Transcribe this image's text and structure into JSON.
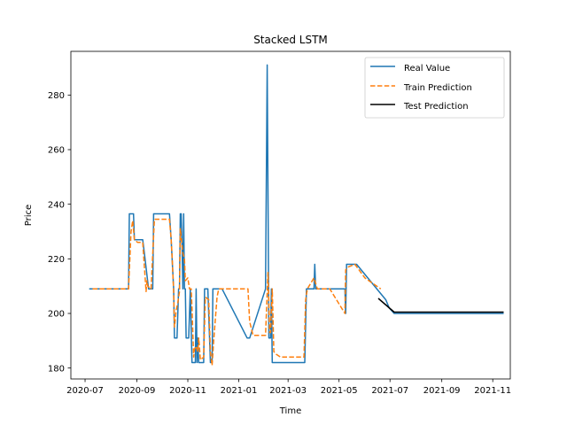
{
  "chart_data": {
    "type": "line",
    "title": "Stacked LSTM",
    "xlabel": "Time",
    "ylabel": "Price",
    "x_ticks": [
      "2020-07",
      "2020-09",
      "2020-11",
      "2021-01",
      "2021-03",
      "2021-05",
      "2021-07",
      "2021-09",
      "2021-11"
    ],
    "xlim": [
      "2020-06-14",
      "2021-11-22"
    ],
    "y_ticks": [
      180,
      200,
      220,
      240,
      260,
      280
    ],
    "ylim": [
      176,
      296
    ],
    "grid": false,
    "legend_position": "top-right",
    "series": [
      {
        "name": "Real Value",
        "color": "#1f77b4",
        "style": "solid",
        "x": [
          "2020-07-06",
          "2020-08-22",
          "2020-08-23",
          "2020-08-28",
          "2020-08-29",
          "2020-09-08",
          "2020-09-10",
          "2020-09-15",
          "2020-09-20",
          "2020-09-21",
          "2020-10-10",
          "2020-10-12",
          "2020-10-15",
          "2020-10-16",
          "2020-10-19",
          "2020-10-21",
          "2020-10-22",
          "2020-10-23",
          "2020-10-24",
          "2020-10-25",
          "2020-10-26",
          "2020-10-27",
          "2020-10-28",
          "2020-10-29",
          "2020-10-30",
          "2020-11-02",
          "2020-11-04",
          "2020-11-06",
          "2020-11-08",
          "2020-11-10",
          "2020-11-11",
          "2020-11-12",
          "2020-11-13",
          "2020-11-14",
          "2020-11-20",
          "2020-11-21",
          "2020-11-25",
          "2020-11-28",
          "2020-11-30",
          "2020-12-01",
          "2020-12-02",
          "2020-12-04",
          "2020-12-08",
          "2020-12-10",
          "2020-12-12",
          "2021-01-11",
          "2021-01-14",
          "2021-02-02",
          "2021-02-04",
          "2021-02-06",
          "2021-02-08",
          "2021-02-09",
          "2021-02-10",
          "2021-02-12",
          "2021-02-14",
          "2021-02-15",
          "2021-02-16",
          "2021-02-18",
          "2021-03-21",
          "2021-03-23",
          "2021-04-01",
          "2021-04-02",
          "2021-04-03",
          "2021-05-08",
          "2021-05-09",
          "2021-05-10",
          "2021-05-22",
          "2021-06-26",
          "2021-06-30",
          "2021-07-06",
          "2021-11-14"
        ],
        "values": [
          209,
          209,
          236.5,
          236.5,
          227,
          227,
          222,
          209,
          209,
          236.5,
          236.5,
          227,
          209,
          191,
          191,
          209,
          209,
          236.5,
          236.5,
          226,
          209,
          236.5,
          209,
          209,
          191,
          191,
          209,
          182,
          182,
          182,
          209,
          182,
          191,
          182,
          182,
          209,
          209,
          182,
          182,
          209,
          209,
          209,
          209,
          209,
          209,
          191,
          191,
          209,
          291,
          191,
          191,
          209,
          182,
          182,
          182,
          182,
          182,
          182,
          182,
          209,
          209,
          218,
          209,
          209,
          200,
          218,
          218,
          205,
          202,
          200,
          200
        ]
      },
      {
        "name": "Train Prediction",
        "color": "#ff7f0e",
        "style": "dashed",
        "x": [
          "2020-07-10",
          "2020-08-22",
          "2020-08-25",
          "2020-08-27",
          "2020-08-29",
          "2020-09-02",
          "2020-09-08",
          "2020-09-12",
          "2020-09-13",
          "2020-09-14",
          "2020-09-18",
          "2020-09-22",
          "2020-09-26",
          "2020-10-10",
          "2020-10-12",
          "2020-10-13",
          "2020-10-15",
          "2020-10-16",
          "2020-10-18",
          "2020-10-20",
          "2020-10-22",
          "2020-10-23",
          "2020-10-24",
          "2020-10-26",
          "2020-10-28",
          "2020-10-29",
          "2020-11-01",
          "2020-11-03",
          "2020-11-05",
          "2020-11-06",
          "2020-11-08",
          "2020-11-09",
          "2020-11-11",
          "2020-11-13",
          "2020-11-14",
          "2020-11-16",
          "2020-11-20",
          "2020-11-22",
          "2020-11-26",
          "2020-11-28",
          "2020-11-30",
          "2020-12-02",
          "2020-12-06",
          "2020-12-08",
          "2020-12-12",
          "2020-12-20",
          "2021-01-12",
          "2021-01-14",
          "2021-01-18",
          "2021-02-02",
          "2021-02-05",
          "2021-02-07",
          "2021-02-08",
          "2021-02-10",
          "2021-02-12",
          "2021-02-15",
          "2021-02-20",
          "2021-03-20",
          "2021-03-22",
          "2021-03-24",
          "2021-04-01",
          "2021-04-03",
          "2021-04-05",
          "2021-04-20",
          "2021-05-08",
          "2021-05-09",
          "2021-05-12",
          "2021-05-20",
          "2021-06-01",
          "2021-06-20"
        ],
        "values": [
          209,
          209,
          230,
          234,
          227,
          226,
          226,
          208,
          212,
          210,
          209,
          234.5,
          234.5,
          234.5,
          227,
          222,
          208,
          195,
          201,
          204,
          208,
          231,
          228,
          222,
          220,
          212,
          213,
          209,
          209,
          202,
          184,
          187,
          188,
          186,
          191,
          183,
          184,
          206,
          205,
          186,
          181,
          190,
          206,
          209,
          209,
          209,
          209,
          197,
          192,
          192,
          215,
          193,
          193,
          209,
          186,
          185,
          184,
          184,
          205,
          209,
          213,
          211,
          209,
          209,
          200,
          216,
          217,
          218,
          213,
          209
        ]
      },
      {
        "name": "Test Prediction",
        "color": "#000000",
        "style": "solid",
        "x": [
          "2021-06-17",
          "2021-07-06",
          "2021-11-14"
        ],
        "values": [
          205.5,
          200.5,
          200.5
        ]
      }
    ]
  }
}
